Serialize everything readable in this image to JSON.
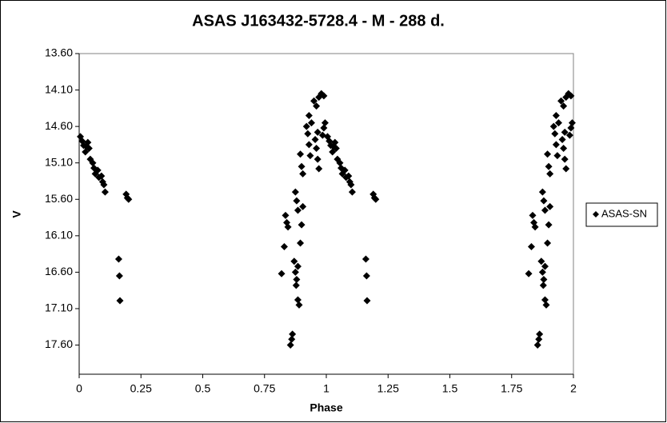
{
  "chart_data": {
    "type": "scatter",
    "title": "ASAS J163432-5728.4  - M - 288 d.",
    "x_label": "Phase",
    "y_label": "V",
    "xlim": [
      0,
      2
    ],
    "xticks": [
      0,
      0.25,
      0.5,
      0.75,
      1,
      1.25,
      1.5,
      1.75,
      2
    ],
    "ylim": [
      13.6,
      18.0
    ],
    "y_reversed": true,
    "yticks": [
      {
        "value": 13.6,
        "label": "13.60"
      },
      {
        "value": 14.1,
        "label": "14.10"
      },
      {
        "value": 14.6,
        "label": "14.60"
      },
      {
        "value": 15.1,
        "label": "15.10"
      },
      {
        "value": 15.6,
        "label": "15.60"
      },
      {
        "value": 16.1,
        "label": "16.10"
      },
      {
        "value": 16.6,
        "label": "16.60"
      },
      {
        "value": 17.1,
        "label": "17.10"
      },
      {
        "value": 17.6,
        "label": "17.60"
      }
    ],
    "grid": false,
    "legend": "right",
    "series": [
      {
        "name": "ASAS-SN",
        "color": "#000000",
        "x": [
          0.005,
          0.012,
          0.018,
          0.025,
          0.03,
          0.035,
          0.04,
          0.045,
          0.055,
          0.06,
          0.065,
          0.075,
          0.08,
          0.09,
          0.095,
          0.1,
          0.105,
          0.19,
          0.195,
          0.2,
          0.16,
          0.163,
          0.165,
          0.819,
          0.83,
          0.835,
          0.84,
          0.845,
          0.855,
          0.86,
          0.863,
          0.87,
          0.875,
          0.88,
          0.878,
          0.885,
          0.885,
          0.89,
          0.875,
          0.88,
          0.885,
          0.895,
          0.9,
          0.905,
          0.895,
          0.9,
          0.905,
          0.92,
          0.925,
          0.93,
          0.935,
          0.93,
          0.94,
          0.95,
          0.96,
          0.97,
          0.98,
          0.99,
          0.955,
          0.96,
          0.965,
          0.97,
          0.965,
          0.985,
          0.99,
          0.995,
          1.005,
          1.012,
          1.018,
          1.025,
          1.03,
          1.035,
          1.04,
          1.045,
          1.055,
          1.06,
          1.065,
          1.075,
          1.08,
          1.09,
          1.095,
          1.1,
          1.105,
          1.19,
          1.195,
          1.2,
          1.16,
          1.163,
          1.165,
          1.819,
          1.83,
          1.835,
          1.84,
          1.845,
          1.855,
          1.86,
          1.863,
          1.87,
          1.875,
          1.88,
          1.878,
          1.885,
          1.885,
          1.89,
          1.875,
          1.88,
          1.885,
          1.895,
          1.9,
          1.905,
          1.895,
          1.9,
          1.905,
          1.92,
          1.925,
          1.93,
          1.935,
          1.93,
          1.94,
          1.95,
          1.96,
          1.97,
          1.98,
          1.99,
          1.955,
          1.96,
          1.965,
          1.97,
          1.965,
          1.985,
          1.99,
          1.995
        ],
        "values": [
          14.74,
          14.8,
          14.86,
          14.95,
          14.88,
          14.82,
          14.9,
          15.05,
          15.1,
          15.17,
          15.25,
          15.2,
          15.3,
          15.28,
          15.36,
          15.4,
          15.5,
          15.53,
          15.58,
          15.6,
          16.42,
          16.65,
          16.99,
          16.62,
          16.25,
          15.82,
          15.92,
          15.98,
          17.6,
          17.52,
          17.45,
          16.45,
          16.6,
          16.7,
          16.78,
          16.52,
          16.98,
          17.05,
          15.5,
          15.62,
          15.75,
          16.2,
          15.95,
          15.7,
          14.98,
          15.15,
          15.25,
          14.6,
          14.7,
          14.85,
          15.0,
          14.45,
          14.55,
          14.25,
          14.32,
          14.2,
          14.15,
          14.18,
          14.78,
          14.9,
          15.05,
          15.18,
          14.68,
          14.72,
          14.62,
          14.55,
          14.74,
          14.8,
          14.86,
          14.95,
          14.88,
          14.82,
          14.9,
          15.05,
          15.1,
          15.17,
          15.25,
          15.2,
          15.3,
          15.28,
          15.36,
          15.4,
          15.5,
          15.53,
          15.58,
          15.6,
          16.42,
          16.65,
          16.99,
          16.62,
          16.25,
          15.82,
          15.92,
          15.98,
          17.6,
          17.52,
          17.45,
          16.45,
          16.6,
          16.7,
          16.78,
          16.52,
          16.98,
          17.05,
          15.5,
          15.62,
          15.75,
          16.2,
          15.95,
          15.7,
          14.98,
          15.15,
          15.25,
          14.6,
          14.7,
          14.85,
          15.0,
          14.45,
          14.55,
          14.25,
          14.32,
          14.2,
          14.15,
          14.18,
          14.78,
          14.9,
          15.05,
          15.18,
          14.68,
          14.72,
          14.62,
          14.55
        ]
      }
    ]
  }
}
